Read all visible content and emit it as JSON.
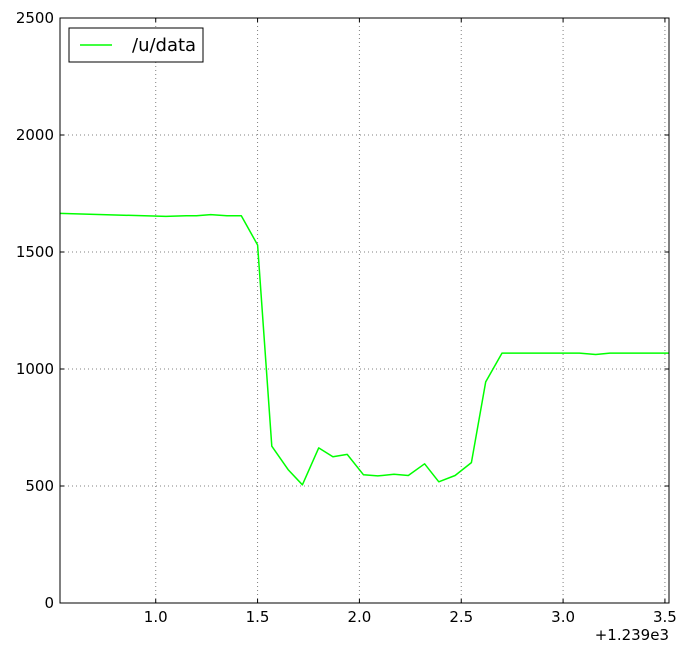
{
  "chart_data": {
    "type": "line",
    "title": "",
    "xlabel": "",
    "ylabel": "",
    "x_offset_label": "+1.239e3",
    "xlim": [
      0.53,
      3.52
    ],
    "ylim": [
      0,
      2500
    ],
    "x_ticks": [
      1.0,
      1.5,
      2.0,
      2.5,
      3.0,
      3.5
    ],
    "x_tick_labels": [
      "1.0",
      "1.5",
      "2.0",
      "2.5",
      "3.0",
      "3.5"
    ],
    "y_ticks": [
      0,
      500,
      1000,
      1500,
      2000,
      2500
    ],
    "y_tick_labels": [
      "0",
      "500",
      "1000",
      "1500",
      "2000",
      "2500"
    ],
    "grid": true,
    "legend_position": "top-left",
    "series": [
      {
        "name": "/u/data",
        "color": "#00ff00",
        "x": [
          0.53,
          1.05,
          1.15,
          1.2,
          1.27,
          1.35,
          1.42,
          1.5,
          1.57,
          1.65,
          1.72,
          1.8,
          1.87,
          1.94,
          2.02,
          2.09,
          2.17,
          2.24,
          2.32,
          2.39,
          2.47,
          2.55,
          2.62,
          2.7,
          3.08,
          3.16,
          3.23,
          3.52
        ],
        "y": [
          1665,
          1652,
          1655,
          1655,
          1660,
          1655,
          1655,
          1530,
          670,
          570,
          505,
          663,
          625,
          635,
          548,
          543,
          550,
          545,
          595,
          518,
          545,
          600,
          945,
          1068,
          1068,
          1062,
          1068,
          1068
        ]
      }
    ]
  }
}
